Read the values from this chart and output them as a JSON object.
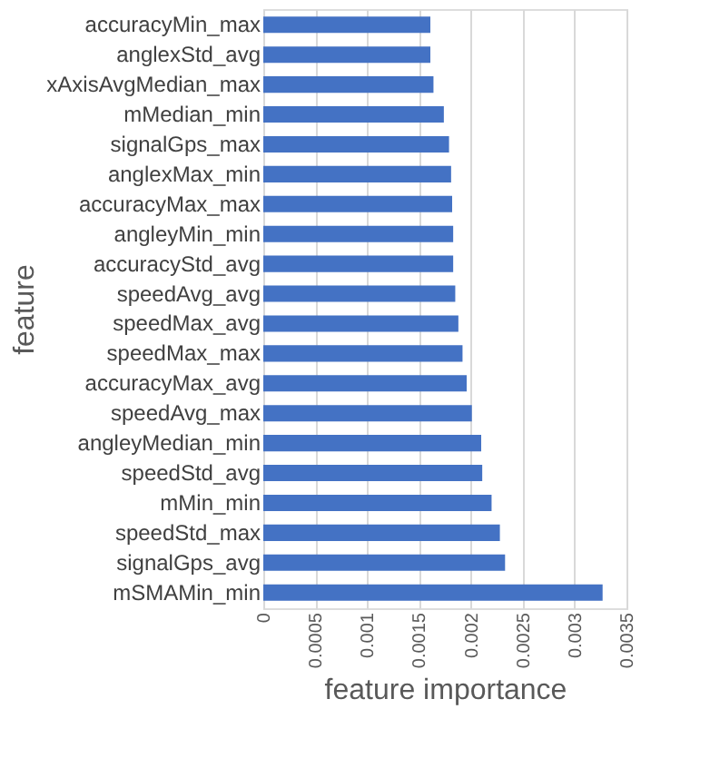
{
  "chart_data": {
    "type": "bar",
    "orientation": "horizontal",
    "xlabel": "feature importance",
    "ylabel": "feature",
    "categories": [
      "accuracyMin_max",
      "anglexStd_avg",
      "xAxisAvgMedian_max",
      "mMedian_min",
      "signalGps_max",
      "anglexMax_min",
      "accuracyMax_max",
      "angleyMin_min",
      "accuracyStd_avg",
      "speedAvg_avg",
      "speedMax_avg",
      "speedMax_max",
      "accuracyMax_avg",
      "speedAvg_max",
      "angleyMedian_min",
      "speedStd_avg",
      "mMin_min",
      "speedStd_max",
      "signalGps_avg",
      "mSMAMin_min"
    ],
    "values": [
      0.00161,
      0.00161,
      0.00164,
      0.00174,
      0.00179,
      0.00181,
      0.00182,
      0.00183,
      0.00183,
      0.00185,
      0.00188,
      0.00192,
      0.00196,
      0.00201,
      0.0021,
      0.00211,
      0.0022,
      0.00228,
      0.00233,
      0.00327
    ],
    "color": "#4472c4",
    "xlim": [
      0,
      0.0035
    ],
    "xticks": [
      0,
      0.0005,
      0.001,
      0.0015,
      0.002,
      0.0025,
      0.003,
      0.0035
    ],
    "grid": "x"
  }
}
